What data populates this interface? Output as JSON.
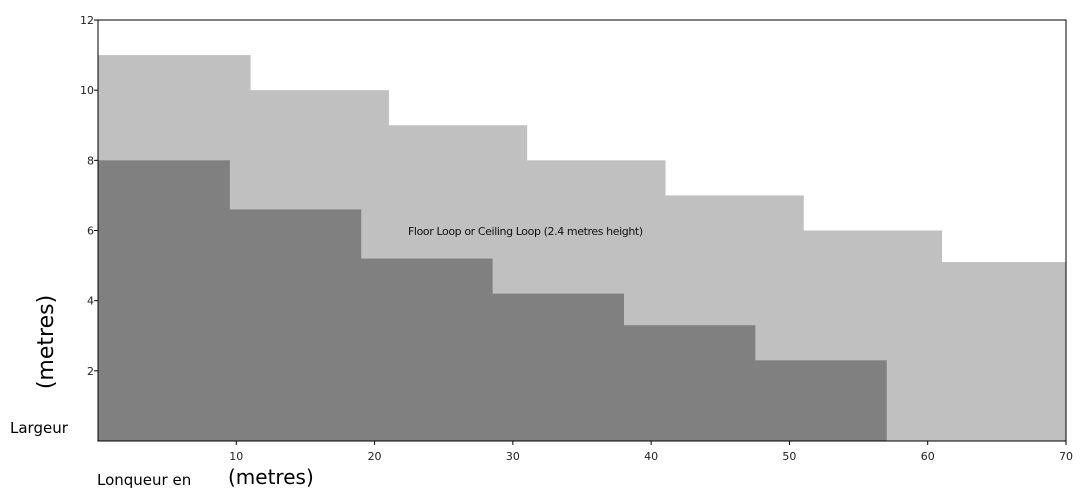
{
  "chart_data": {
    "type": "area",
    "step": true,
    "xlim": [
      0,
      70
    ],
    "ylim": [
      0,
      12
    ],
    "x_ticks": [
      10,
      20,
      30,
      40,
      50,
      60,
      70
    ],
    "y_ticks": [
      2,
      4,
      6,
      8,
      10,
      12
    ],
    "xlabel_prefix": "Lonqueur en",
    "xlabel_unit": "(metres)",
    "ylabel_prefix": "Largeur",
    "ylabel_unit": "(metres)",
    "annotation": "Floor Loop or Ceiling Loop (2.4 metres height)",
    "grid": false,
    "series": [
      {
        "color": "#c0c0c0",
        "steps": [
          {
            "x0": 0,
            "x1": 11,
            "y": 11
          },
          {
            "x0": 11,
            "x1": 21,
            "y": 10
          },
          {
            "x0": 21,
            "x1": 31,
            "y": 9
          },
          {
            "x0": 31,
            "x1": 41,
            "y": 8
          },
          {
            "x0": 41,
            "x1": 51,
            "y": 7
          },
          {
            "x0": 51,
            "x1": 61,
            "y": 6
          },
          {
            "x0": 61,
            "x1": 70,
            "y": 5.1
          }
        ]
      },
      {
        "color": "#808080",
        "steps": [
          {
            "x0": 0,
            "x1": 9.5,
            "y": 8
          },
          {
            "x0": 9.5,
            "x1": 19,
            "y": 6.6
          },
          {
            "x0": 19,
            "x1": 28.5,
            "y": 5.2
          },
          {
            "x0": 28.5,
            "x1": 38,
            "y": 4.2
          },
          {
            "x0": 38,
            "x1": 47.5,
            "y": 3.3
          },
          {
            "x0": 47.5,
            "x1": 57,
            "y": 2.3
          }
        ]
      }
    ]
  }
}
